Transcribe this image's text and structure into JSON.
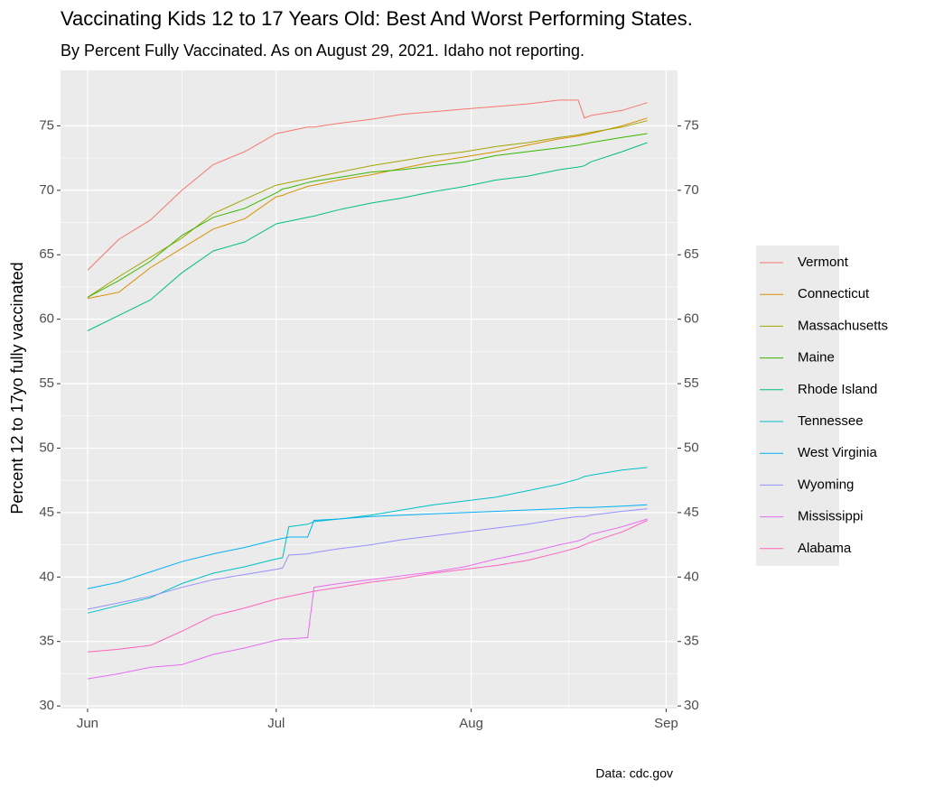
{
  "chart_data": {
    "type": "line",
    "title": "Vaccinating Kids 12 to 17 Years Old: Best And Worst Performing States.",
    "subtitle": "By Percent Fully Vaccinated. As on August 29, 2021. Idaho not reporting.",
    "y_label": "Percent 12 to 17yo fully vaccinated",
    "caption": "Data: cdc.gov",
    "x": [
      0,
      5,
      10,
      15,
      20,
      25,
      30,
      31,
      32,
      35,
      36,
      40,
      45,
      50,
      55,
      60,
      65,
      70,
      75,
      78,
      79,
      80,
      85,
      89
    ],
    "xlim": [
      -4.3,
      93.8
    ],
    "xticks": [
      {
        "value": 0,
        "label": "Jun"
      },
      {
        "value": 30,
        "label": "Jul"
      },
      {
        "value": 61,
        "label": "Aug"
      },
      {
        "value": 92,
        "label": "Sep"
      }
    ],
    "ylim": [
      29.8,
      79.3
    ],
    "yticks": [
      30,
      35,
      40,
      45,
      50,
      55,
      60,
      65,
      70,
      75
    ],
    "y2lim": [
      29.8,
      79.3
    ],
    "y2ticks": [
      30,
      35,
      40,
      45,
      50,
      55,
      60,
      65,
      70,
      75
    ],
    "grid": true,
    "legend": "right",
    "series": [
      {
        "name": "Vermont",
        "color": "#F8766D",
        "values": [
          63.8,
          66.2,
          67.7,
          70.0,
          72.0,
          73.0,
          74.4,
          74.5,
          74.6,
          74.9,
          74.9,
          75.2,
          75.5,
          75.9,
          76.1,
          76.3,
          76.5,
          76.7,
          77.0,
          77.0,
          75.6,
          75.8,
          76.2,
          76.8
        ]
      },
      {
        "name": "Connecticut",
        "color": "#D89000",
        "values": [
          61.6,
          62.1,
          64.0,
          65.5,
          67.0,
          67.8,
          69.5,
          69.6,
          69.8,
          70.3,
          70.4,
          70.8,
          71.2,
          71.7,
          72.2,
          72.6,
          73.0,
          73.5,
          74.0,
          74.2,
          74.3,
          74.4,
          75.0,
          75.6
        ]
      },
      {
        "name": "Massachusetts",
        "color": "#A3A500",
        "values": [
          61.7,
          63.3,
          64.8,
          66.3,
          68.2,
          69.3,
          70.4,
          70.5,
          70.6,
          70.9,
          71.0,
          71.4,
          71.9,
          72.3,
          72.7,
          73.0,
          73.4,
          73.7,
          74.1,
          74.3,
          74.4,
          74.5,
          74.9,
          75.4
        ]
      },
      {
        "name": "Maine",
        "color": "#39B600",
        "values": [
          61.7,
          63.0,
          64.5,
          66.5,
          67.9,
          68.6,
          69.8,
          70.1,
          70.2,
          70.6,
          70.7,
          71.0,
          71.4,
          71.6,
          71.9,
          72.2,
          72.7,
          73.0,
          73.3,
          73.5,
          73.6,
          73.7,
          74.1,
          74.4
        ]
      },
      {
        "name": "Rhode Island",
        "color": "#00BF7D",
        "values": [
          59.1,
          60.3,
          61.5,
          63.6,
          65.3,
          66.0,
          67.4,
          67.5,
          67.6,
          67.9,
          68.0,
          68.5,
          69.0,
          69.4,
          69.9,
          70.3,
          70.8,
          71.1,
          71.6,
          71.8,
          71.9,
          72.2,
          73.0,
          73.7
        ]
      },
      {
        "name": "Tennessee",
        "color": "#00BFC4",
        "values": [
          37.2,
          37.8,
          38.4,
          39.5,
          40.3,
          40.8,
          41.4,
          41.5,
          43.9,
          44.1,
          44.3,
          44.5,
          44.8,
          45.2,
          45.6,
          45.9,
          46.2,
          46.7,
          47.2,
          47.6,
          47.8,
          47.9,
          48.3,
          48.5
        ]
      },
      {
        "name": "West Virginia",
        "color": "#00B0F6",
        "values": [
          39.1,
          39.6,
          40.4,
          41.2,
          41.8,
          42.3,
          42.9,
          43.0,
          43.1,
          43.1,
          44.4,
          44.5,
          44.7,
          44.8,
          44.9,
          45.0,
          45.1,
          45.2,
          45.3,
          45.4,
          45.4,
          45.4,
          45.5,
          45.6
        ]
      },
      {
        "name": "Wyoming",
        "color": "#9590FF",
        "values": [
          37.5,
          38.0,
          38.5,
          39.2,
          39.8,
          40.2,
          40.6,
          40.7,
          41.7,
          41.8,
          41.9,
          42.2,
          42.5,
          42.9,
          43.2,
          43.5,
          43.8,
          44.1,
          44.5,
          44.7,
          44.7,
          44.8,
          45.1,
          45.3
        ]
      },
      {
        "name": "Mississippi",
        "color": "#E76BF3",
        "values": [
          32.1,
          32.5,
          33.0,
          33.2,
          34.0,
          34.5,
          35.1,
          35.2,
          35.2,
          35.3,
          39.2,
          39.5,
          39.8,
          40.1,
          40.4,
          40.8,
          41.4,
          41.9,
          42.5,
          42.8,
          43.0,
          43.3,
          43.9,
          44.5
        ]
      },
      {
        "name": "Alabama",
        "color": "#FF62BC",
        "values": [
          34.2,
          34.4,
          34.7,
          35.8,
          37.0,
          37.6,
          38.3,
          38.4,
          38.5,
          38.8,
          38.9,
          39.2,
          39.6,
          39.9,
          40.3,
          40.6,
          40.9,
          41.3,
          41.9,
          42.3,
          42.5,
          42.7,
          43.5,
          44.4
        ]
      }
    ]
  }
}
